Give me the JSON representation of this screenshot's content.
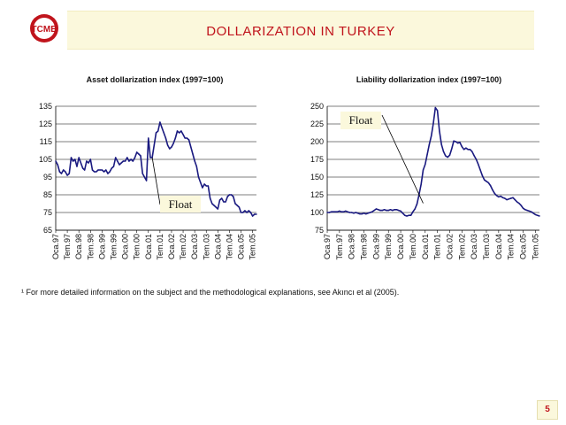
{
  "header": {
    "title": "DOLLARIZATION IN TURKEY",
    "logo_text": "TCMB"
  },
  "footnote": {
    "marker": "¹",
    "text": "For more detailed information on the subject and the methodological explanations, see Akıncı et al (2005)."
  },
  "page_number": "5",
  "colors": {
    "line": "#1a1a80",
    "title_red": "#c0141c",
    "banner": "#fbf8dc"
  },
  "chart_data": [
    {
      "type": "line",
      "title": "Asset dollarization index (1997=100)",
      "annotation": "Float",
      "ylim": [
        65,
        135
      ],
      "yticks": [
        65,
        75,
        85,
        95,
        105,
        115,
        125,
        135
      ],
      "xlabels": [
        "Oca.97",
        "Tem.97",
        "Oca.98",
        "Tem.98",
        "Oca.99",
        "Tem.99",
        "Oca.00",
        "Tem.00",
        "Oca.01",
        "Tem.01",
        "Oca.02",
        "Tem.02",
        "Oca.03",
        "Tem.03",
        "Oca.04",
        "Tem.04",
        "Oca.05",
        "Tem.05"
      ],
      "grid": true,
      "x": [
        "1997-01",
        "1997-02",
        "1997-03",
        "1997-04",
        "1997-05",
        "1997-06",
        "1997-07",
        "1997-08",
        "1997-09",
        "1997-10",
        "1997-11",
        "1997-12",
        "1998-01",
        "1998-02",
        "1998-03",
        "1998-04",
        "1998-05",
        "1998-06",
        "1998-07",
        "1998-08",
        "1998-09",
        "1998-10",
        "1998-11",
        "1998-12",
        "1999-01",
        "1999-02",
        "1999-03",
        "1999-04",
        "1999-05",
        "1999-06",
        "1999-07",
        "1999-08",
        "1999-09",
        "1999-10",
        "1999-11",
        "1999-12",
        "2000-01",
        "2000-02",
        "2000-03",
        "2000-04",
        "2000-05",
        "2000-06",
        "2000-07",
        "2000-08",
        "2000-09",
        "2000-10",
        "2000-11",
        "2000-12",
        "2001-01",
        "2001-02",
        "2001-03",
        "2001-04",
        "2001-05",
        "2001-06",
        "2001-07",
        "2001-08",
        "2001-09",
        "2001-10",
        "2001-11",
        "2001-12",
        "2002-01",
        "2002-02",
        "2002-03",
        "2002-04",
        "2002-05",
        "2002-06",
        "2002-07",
        "2002-08",
        "2002-09",
        "2002-10",
        "2002-11",
        "2002-12",
        "2003-01",
        "2003-02",
        "2003-03",
        "2003-04",
        "2003-05",
        "2003-06",
        "2003-07",
        "2003-08",
        "2003-09",
        "2003-10",
        "2003-11",
        "2003-12",
        "2004-01",
        "2004-02",
        "2004-03",
        "2004-04",
        "2004-05",
        "2004-06",
        "2004-07",
        "2004-08",
        "2004-09",
        "2004-10",
        "2004-11",
        "2004-12",
        "2005-01",
        "2005-02",
        "2005-03",
        "2005-04",
        "2005-05",
        "2005-06",
        "2005-07",
        "2005-08",
        "2005-09"
      ],
      "y": [
        104,
        102,
        98,
        97,
        99,
        98,
        96,
        97,
        106,
        104,
        105,
        101,
        106,
        103,
        100,
        99,
        104,
        103,
        105,
        99,
        98,
        98,
        99,
        99,
        99,
        98,
        99,
        97,
        98,
        100,
        101,
        106,
        104,
        102,
        103,
        104,
        104,
        106,
        104,
        105,
        104,
        106,
        109,
        108,
        107,
        97,
        95,
        93,
        117,
        106,
        106,
        113,
        120,
        121,
        126,
        123,
        120,
        117,
        113,
        111,
        112,
        114,
        117,
        121,
        120,
        121,
        119,
        117,
        117,
        116,
        112,
        108,
        104,
        101,
        95,
        92,
        89,
        91,
        90,
        90,
        83,
        80,
        79,
        78,
        77,
        82,
        83,
        81,
        81,
        84,
        85,
        85,
        84,
        80,
        79,
        78,
        75,
        75,
        76,
        75,
        76,
        75,
        73,
        74,
        74
      ],
      "series": [
        {
          "name": ""
        }
      ]
    },
    {
      "type": "line",
      "title": "Liability dollarization index (1997=100)",
      "annotation": "Float",
      "ylim": [
        75,
        250
      ],
      "yticks": [
        75,
        100,
        125,
        150,
        175,
        200,
        225,
        250
      ],
      "xlabels": [
        "Oca.97",
        "Tem.97",
        "Oca.98",
        "Tem.98",
        "Oca.99",
        "Tem.99",
        "Oca.00",
        "Tem.00",
        "Oca.01",
        "Tem.01",
        "Oca.02",
        "Tem.02",
        "Oca.03",
        "Tem.03",
        "Oca.04",
        "Tem.04",
        "Oca.05",
        "Tem.05"
      ],
      "grid": true,
      "x": [
        "1997-01",
        "1997-02",
        "1997-03",
        "1997-04",
        "1997-05",
        "1997-06",
        "1997-07",
        "1997-08",
        "1997-09",
        "1997-10",
        "1997-11",
        "1997-12",
        "1998-01",
        "1998-02",
        "1998-03",
        "1998-04",
        "1998-05",
        "1998-06",
        "1998-07",
        "1998-08",
        "1998-09",
        "1998-10",
        "1998-11",
        "1998-12",
        "1999-01",
        "1999-02",
        "1999-03",
        "1999-04",
        "1999-05",
        "1999-06",
        "1999-07",
        "1999-08",
        "1999-09",
        "1999-10",
        "1999-11",
        "1999-12",
        "2000-01",
        "2000-02",
        "2000-03",
        "2000-04",
        "2000-05",
        "2000-06",
        "2000-07",
        "2000-08",
        "2000-09",
        "2000-10",
        "2000-11",
        "2000-12",
        "2001-01",
        "2001-02",
        "2001-03",
        "2001-04",
        "2001-05",
        "2001-06",
        "2001-07",
        "2001-08",
        "2001-09",
        "2001-10",
        "2001-11",
        "2001-12",
        "2002-01",
        "2002-02",
        "2002-03",
        "2002-04",
        "2002-05",
        "2002-06",
        "2002-07",
        "2002-08",
        "2002-09",
        "2002-10",
        "2002-11",
        "2002-12",
        "2003-01",
        "2003-02",
        "2003-03",
        "2003-04",
        "2003-05",
        "2003-06",
        "2003-07",
        "2003-08",
        "2003-09",
        "2003-10",
        "2003-11",
        "2003-12",
        "2004-01",
        "2004-02",
        "2004-03",
        "2004-04",
        "2004-05",
        "2004-06",
        "2004-07",
        "2004-08",
        "2004-09",
        "2004-10",
        "2004-11",
        "2004-12",
        "2005-01",
        "2005-02",
        "2005-03",
        "2005-04",
        "2005-05",
        "2005-06",
        "2005-07",
        "2005-08",
        "2005-09"
      ],
      "y": [
        100,
        100,
        101,
        101,
        101,
        101,
        102,
        101,
        101,
        102,
        101,
        100,
        100,
        99,
        100,
        99,
        98,
        98,
        99,
        98,
        99,
        100,
        101,
        103,
        105,
        104,
        103,
        103,
        104,
        103,
        103,
        104,
        103,
        104,
        104,
        103,
        102,
        99,
        96,
        95,
        96,
        96,
        101,
        105,
        112,
        125,
        140,
        160,
        168,
        182,
        196,
        208,
        226,
        248,
        244,
        215,
        196,
        186,
        180,
        178,
        181,
        190,
        201,
        200,
        198,
        199,
        193,
        189,
        191,
        189,
        189,
        186,
        180,
        175,
        168,
        160,
        152,
        146,
        144,
        142,
        138,
        132,
        127,
        124,
        122,
        123,
        121,
        120,
        118,
        119,
        120,
        121,
        118,
        115,
        113,
        110,
        106,
        104,
        103,
        102,
        101,
        99,
        97,
        96,
        95
      ],
      "series": [
        {
          "name": ""
        }
      ]
    }
  ]
}
